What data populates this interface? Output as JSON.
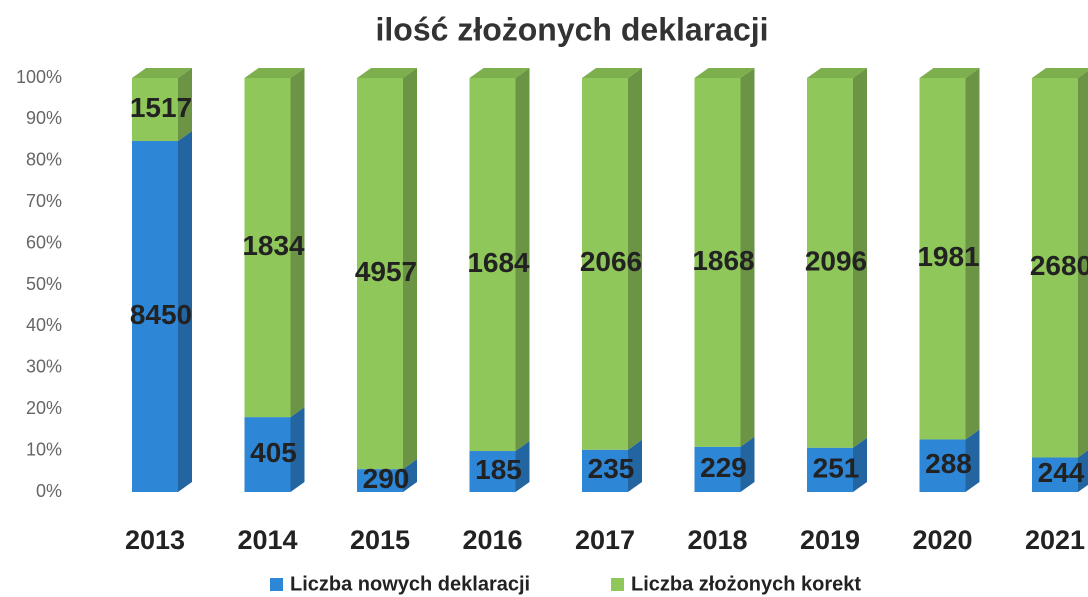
{
  "chart_data": {
    "type": "bar",
    "stacking": "percent",
    "title": "ilość złożonych deklaracji",
    "categories": [
      "2013",
      "2014",
      "2015",
      "2016",
      "2017",
      "2018",
      "2019",
      "2020",
      "2021"
    ],
    "series": [
      {
        "name": "Liczba nowych deklaracji",
        "color": "#2e86d6",
        "values": [
          8450,
          405,
          290,
          185,
          235,
          229,
          251,
          288,
          244
        ]
      },
      {
        "name": "Liczba złożonych korekt",
        "color": "#8fc75a",
        "values": [
          1517,
          1834,
          4957,
          1684,
          2066,
          1868,
          2096,
          1981,
          2680
        ]
      }
    ],
    "ylim": [
      0,
      100
    ],
    "yticks": [
      {
        "value": 0,
        "label": "0%"
      },
      {
        "value": 10,
        "label": "10%"
      },
      {
        "value": 20,
        "label": "20%"
      },
      {
        "value": 30,
        "label": "30%"
      },
      {
        "value": 40,
        "label": "40%"
      },
      {
        "value": 50,
        "label": "50%"
      },
      {
        "value": 60,
        "label": "60%"
      },
      {
        "value": 70,
        "label": "70%"
      },
      {
        "value": 80,
        "label": "80%"
      },
      {
        "value": 90,
        "label": "90%"
      },
      {
        "value": 100,
        "label": "100%"
      }
    ],
    "legend": "bottom"
  }
}
